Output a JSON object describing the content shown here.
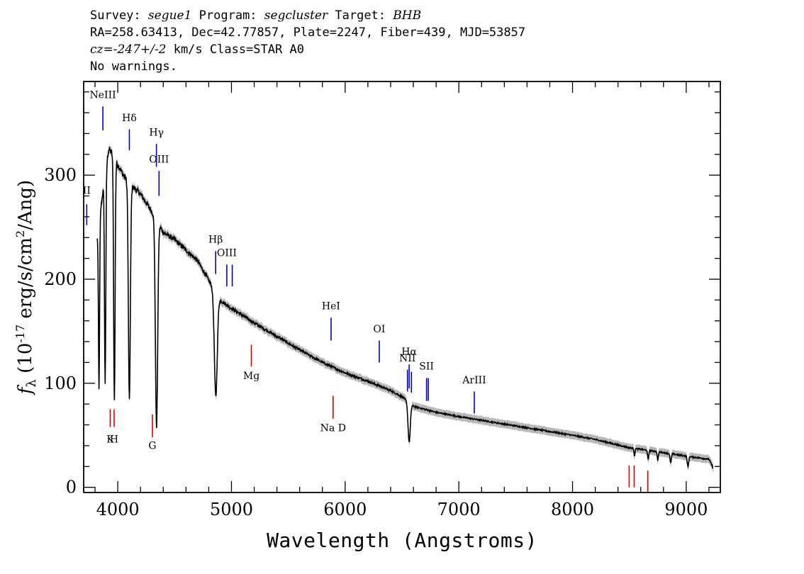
{
  "header": {
    "survey_label": "Survey:",
    "survey": "segue1",
    "program_label": "Program:",
    "program": "segcluster",
    "target_label": "Target:",
    "target": "BHB",
    "line2": "RA=258.63413, Dec=42.77857, Plate=2247, Fiber=439, MJD=53857",
    "cz_label": "cz=",
    "cz_value": "-247+/-2",
    "cz_rest": " km/s Class=STAR A0",
    "line4": "No warnings."
  },
  "chart_data": {
    "type": "line",
    "xlabel": "Wavelength (Angstroms)",
    "ylabel": "f_λ (10^-17 erg/s/cm^2/Ang)",
    "xlim": [
      3700,
      9300
    ],
    "ylim": [
      -5,
      390
    ],
    "x_ticks": [
      4000,
      5000,
      6000,
      7000,
      8000,
      9000
    ],
    "y_ticks": [
      0,
      100,
      200,
      300
    ],
    "series_color": "#000000",
    "error_color": "#b8b8b8",
    "emission_color": "#0000cc",
    "absorption_color": "#dd0000",
    "continuum": [
      [
        3820,
        240
      ],
      [
        3870,
        285
      ],
      [
        3920,
        325
      ],
      [
        3960,
        320
      ],
      [
        4000,
        310
      ],
      [
        4050,
        300
      ],
      [
        4100,
        292
      ],
      [
        4200,
        282
      ],
      [
        4300,
        265
      ],
      [
        4400,
        245
      ],
      [
        4500,
        238
      ],
      [
        4700,
        218
      ],
      [
        4900,
        180
      ],
      [
        5000,
        172
      ],
      [
        5200,
        158
      ],
      [
        5400,
        145
      ],
      [
        5600,
        132
      ],
      [
        5800,
        120
      ],
      [
        6000,
        110
      ],
      [
        6200,
        102
      ],
      [
        6400,
        93
      ],
      [
        6500,
        87
      ],
      [
        6600,
        78
      ],
      [
        6800,
        72
      ],
      [
        7000,
        68
      ],
      [
        7500,
        59
      ],
      [
        8000,
        50
      ],
      [
        8200,
        46
      ],
      [
        8500,
        38
      ],
      [
        8700,
        35
      ],
      [
        9000,
        30
      ],
      [
        9200,
        27
      ],
      [
        9240,
        18
      ]
    ],
    "absorption_dips": [
      {
        "x": 3835,
        "depth": 160,
        "width": 7
      },
      {
        "x": 3889,
        "depth": 200,
        "width": 8
      },
      {
        "x": 3970,
        "depth": 235,
        "width": 9
      },
      {
        "x": 4102,
        "depth": 210,
        "width": 12
      },
      {
        "x": 4341,
        "depth": 200,
        "width": 14
      },
      {
        "x": 4862,
        "depth": 100,
        "width": 18
      },
      {
        "x": 6563,
        "depth": 38,
        "width": 14
      },
      {
        "x": 8545,
        "depth": 7,
        "width": 6
      },
      {
        "x": 8665,
        "depth": 9,
        "width": 7
      },
      {
        "x": 8750,
        "depth": 8,
        "width": 7
      },
      {
        "x": 8863,
        "depth": 9,
        "width": 8
      },
      {
        "x": 9015,
        "depth": 10,
        "width": 9
      }
    ],
    "emission_lines": [
      {
        "label": "II",
        "x": 3727,
        "ymin": 252,
        "ymax": 272,
        "label_y": 282
      },
      {
        "label": "NeIII",
        "x": 3869,
        "ymin": 343,
        "ymax": 366,
        "label_y": 374
      },
      {
        "label": "Hδ",
        "x": 4102,
        "ymin": 324,
        "ymax": 344,
        "label_y": 352
      },
      {
        "label": "Hγ",
        "x": 4340,
        "ymin": 308,
        "ymax": 330,
        "label_y": 338
      },
      {
        "label": "OIII",
        "x": 4363,
        "ymin": 280,
        "ymax": 304,
        "label_y": 312
      },
      {
        "label": "Hβ",
        "x": 4861,
        "ymin": 205,
        "ymax": 227,
        "label_y": 235
      },
      {
        "label": "OIII",
        "x": 4959,
        "ymin": 193,
        "ymax": 214,
        "label_y": 222
      },
      {
        "label": "OIII",
        "x": 5007,
        "ymin": 193,
        "ymax": 214,
        "label_y": null
      },
      {
        "label": "HeI",
        "x": 5876,
        "ymin": 141,
        "ymax": 163,
        "label_y": 171
      },
      {
        "label": "OI",
        "x": 6300,
        "ymin": 120,
        "ymax": 141,
        "label_y": 149
      },
      {
        "label": "NII",
        "x": 6548,
        "ymin": 92,
        "ymax": 113,
        "label_y": 121
      },
      {
        "label": "Hα",
        "x": 6563,
        "ymin": 95,
        "ymax": 118,
        "label_y": 127
      },
      {
        "label": "NII",
        "x": 6583,
        "ymin": 91,
        "ymax": 111,
        "label_y": null
      },
      {
        "label": "SII",
        "x": 6716,
        "ymin": 83,
        "ymax": 105,
        "label_y": 113
      },
      {
        "label": "SII",
        "x": 6731,
        "ymin": 83,
        "ymax": 105,
        "label_y": null
      },
      {
        "label": "ArIII",
        "x": 7136,
        "ymin": 71,
        "ymax": 92,
        "label_y": 100
      }
    ],
    "absorption_lines": [
      {
        "label": "K",
        "x": 3934,
        "ymin": 58,
        "ymax": 75,
        "label_y": 43
      },
      {
        "label": "H",
        "x": 3968,
        "ymin": 58,
        "ymax": 75,
        "label_y": 43
      },
      {
        "label": "G",
        "x": 4305,
        "ymin": 48,
        "ymax": 70,
        "label_y": 37
      },
      {
        "label": "Mg",
        "x": 5175,
        "ymin": 116,
        "ymax": 137,
        "label_y": 104
      },
      {
        "label": "Na D",
        "x": 5894,
        "ymin": 66,
        "ymax": 88,
        "label_y": 54
      },
      {
        "label": "",
        "x": 8498,
        "ymin": 0,
        "ymax": 21,
        "label_y": null
      },
      {
        "label": "",
        "x": 8542,
        "ymin": 0,
        "ymax": 21,
        "label_y": null
      },
      {
        "label": "",
        "x": 8662,
        "ymin": -5,
        "ymax": 16,
        "label_y": null
      }
    ]
  }
}
